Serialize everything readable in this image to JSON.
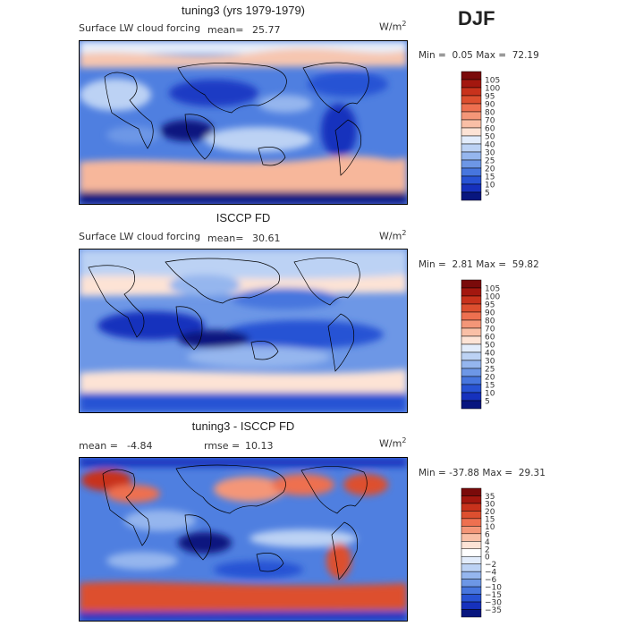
{
  "season": "DJF",
  "panels": [
    {
      "title": "tuning3 (yrs 1979-1979)",
      "left_label": "Surface LW cloud forcing",
      "stat1_label": "mean=",
      "stat1_value": "25.77",
      "stat2_label": "",
      "stat2_value": "",
      "unit": "W/m",
      "unit_sup": "2",
      "min_label": "Min =",
      "min_value": "0.05",
      "max_label": "Max =",
      "max_value": "72.19"
    },
    {
      "title": "ISCCP FD",
      "left_label": "Surface LW cloud forcing",
      "stat1_label": "mean=",
      "stat1_value": "30.61",
      "stat2_label": "",
      "stat2_value": "",
      "unit": "W/m",
      "unit_sup": "2",
      "min_label": "Min =",
      "min_value": "2.81",
      "max_label": "Max =",
      "max_value": "59.82"
    },
    {
      "title": "tuning3 - ISCCP FD",
      "left_label": "",
      "stat1_label": "mean =",
      "stat1_value": "-4.84",
      "stat2_label": "rmse =",
      "stat2_value": "10.13",
      "unit": "W/m",
      "unit_sup": "2",
      "min_label": "Min =",
      "min_value": "-37.88",
      "max_label": "Max =",
      "max_value": "29.31"
    }
  ],
  "chart_data": [
    {
      "type": "heatmap",
      "title": "tuning3 (yrs 1979-1979)",
      "colorbar_levels": [
        "105",
        "100",
        "95",
        "90",
        "80",
        "70",
        "60",
        "50",
        "40",
        "30",
        "25",
        "20",
        "15",
        "10",
        "5"
      ],
      "colors": [
        "#7a0a0a",
        "#a3170f",
        "#c8321c",
        "#dd4f2f",
        "#ee7050",
        "#f49678",
        "#f9bfa6",
        "#fde3d5",
        "#e2ecfb",
        "#bcd2f4",
        "#95b6ee",
        "#6d97e6",
        "#4776de",
        "#2853d4",
        "#1631bd",
        "#08167f"
      ],
      "mean": 25.77,
      "min": 0.05,
      "max": 72.19
    },
    {
      "type": "heatmap",
      "title": "ISCCP FD",
      "colorbar_levels": [
        "105",
        "100",
        "95",
        "90",
        "80",
        "70",
        "60",
        "50",
        "40",
        "30",
        "25",
        "20",
        "15",
        "10",
        "5"
      ],
      "colors": [
        "#7a0a0a",
        "#a3170f",
        "#c8321c",
        "#dd4f2f",
        "#ee7050",
        "#f49678",
        "#f9bfa6",
        "#fde3d5",
        "#e2ecfb",
        "#bcd2f4",
        "#95b6ee",
        "#6d97e6",
        "#4776de",
        "#2853d4",
        "#1631bd",
        "#08167f"
      ],
      "mean": 30.61,
      "min": 2.81,
      "max": 59.82
    },
    {
      "type": "heatmap",
      "title": "tuning3 - ISCCP FD",
      "colorbar_levels": [
        "35",
        "30",
        "20",
        "15",
        "10",
        "6",
        "4",
        "2",
        "0",
        "−2",
        "−4",
        "−6",
        "−10",
        "−15",
        "−30",
        "−35"
      ],
      "colors": [
        "#7a0a0a",
        "#a3170f",
        "#c8321c",
        "#dd4f2f",
        "#ee7050",
        "#f49678",
        "#f9bfa6",
        "#fde3d5",
        "#ffffff",
        "#e2ecfb",
        "#bcd2f4",
        "#95b6ee",
        "#6d97e6",
        "#4776de",
        "#2853d4",
        "#1631bd",
        "#08167f"
      ],
      "mean": -4.84,
      "rmse": 10.13,
      "min": -37.88,
      "max": 29.31
    }
  ]
}
